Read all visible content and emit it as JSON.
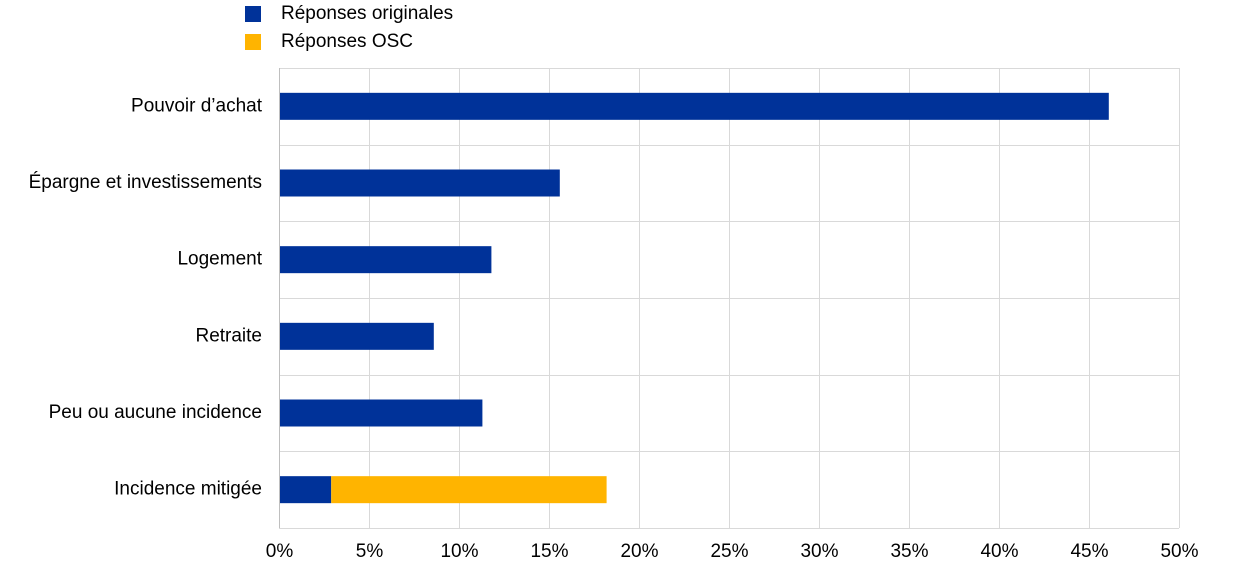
{
  "chart_data": {
    "type": "stacked-bar-horizontal",
    "categories": [
      "Pouvoir d’achat",
      "Épargne et investissements",
      "Logement",
      "Retraite",
      "Peu ou aucune incidence",
      "Incidence mitigée"
    ],
    "series": [
      {
        "name": "Réponses originales",
        "color": "#003299",
        "values": [
          46.1,
          15.6,
          11.8,
          8.6,
          11.3,
          2.9
        ]
      },
      {
        "name": "Réponses OSC",
        "color": "#ffb400",
        "values": [
          null,
          null,
          null,
          null,
          null,
          15.3
        ]
      }
    ],
    "xlim": [
      0,
      50
    ],
    "xticks": [
      {
        "value": 0,
        "label": "0%"
      },
      {
        "value": 5,
        "label": "5%"
      },
      {
        "value": 10,
        "label": "10%"
      },
      {
        "value": 15,
        "label": "15%"
      },
      {
        "value": 20,
        "label": "20%"
      },
      {
        "value": 25,
        "label": "25%"
      },
      {
        "value": 30,
        "label": "30%"
      },
      {
        "value": 35,
        "label": "35%"
      },
      {
        "value": 40,
        "label": "40%"
      },
      {
        "value": 45,
        "label": "45%"
      },
      {
        "value": 50,
        "label": "50%"
      }
    ],
    "grid": true,
    "legend": "top-left"
  }
}
